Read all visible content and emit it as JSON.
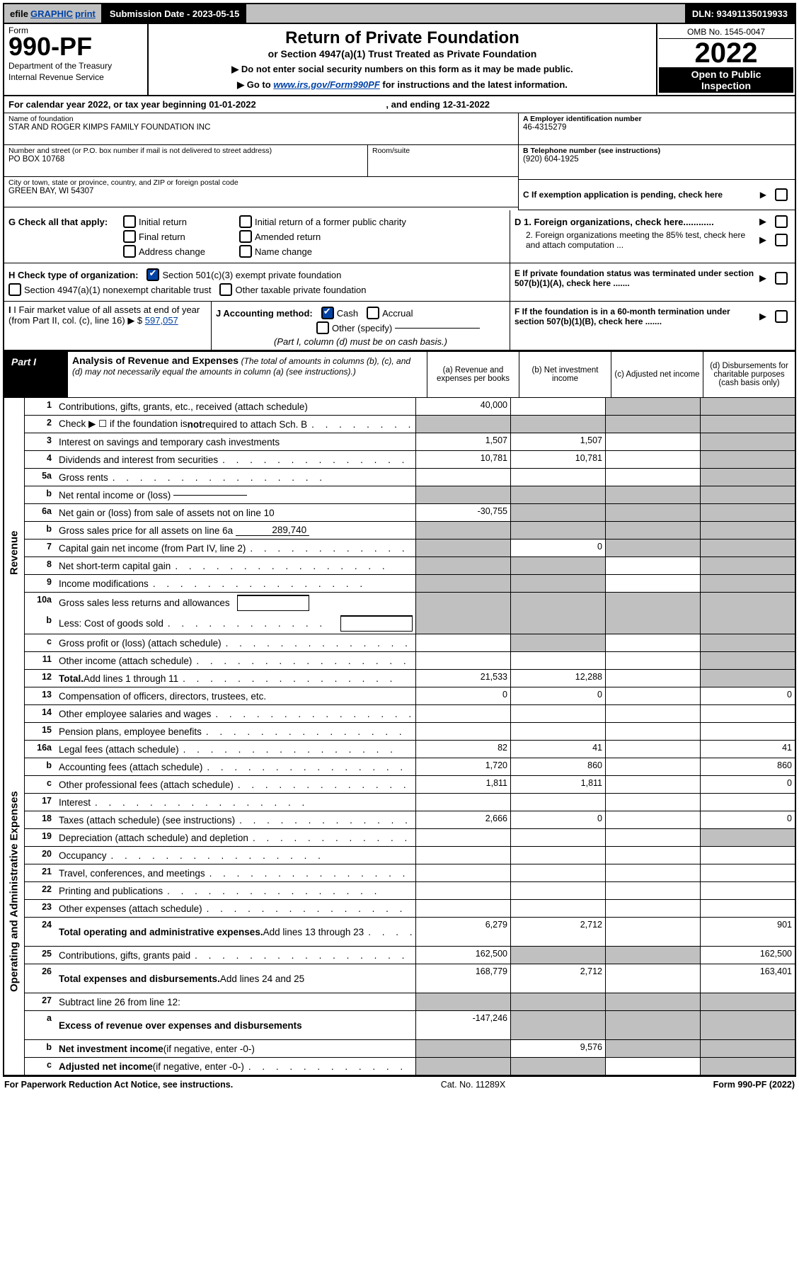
{
  "topbar": {
    "efile_prefix": "efile",
    "efile_graphic": "GRAPHIC",
    "efile_print": "print",
    "submission": "Submission Date - 2023-05-15",
    "dln": "DLN: 93491135019933"
  },
  "header": {
    "form_word": "Form",
    "form_num": "990-PF",
    "dept1": "Department of the Treasury",
    "dept2": "Internal Revenue Service",
    "title": "Return of Private Foundation",
    "sub1": "or Section 4947(a)(1) Trust Treated as Private Foundation",
    "sub2a": "▶ Do not enter social security numbers on this form as it may be made public.",
    "sub2b_pre": "▶ Go to ",
    "sub2b_link": "www.irs.gov/Form990PF",
    "sub2b_post": " for instructions and the latest information.",
    "omb": "OMB No. 1545-0047",
    "year": "2022",
    "open1": "Open to Public",
    "open2": "Inspection"
  },
  "cal": {
    "text_pre": "For calendar year 2022, or tax year beginning ",
    "begin": "01-01-2022",
    "text_mid": ", and ending ",
    "end": "12-31-2022"
  },
  "entity": {
    "name_lbl": "Name of foundation",
    "name": "STAR AND ROGER KIMPS FAMILY FOUNDATION INC",
    "addr_lbl": "Number and street (or P.O. box number if mail is not delivered to street address)",
    "addr": "PO BOX 10768",
    "room_lbl": "Room/suite",
    "room": "",
    "city_lbl": "City or town, state or province, country, and ZIP or foreign postal code",
    "city": "GREEN BAY, WI  54307",
    "ein_lbl": "A Employer identification number",
    "ein": "46-4315279",
    "tel_lbl": "B Telephone number (see instructions)",
    "tel": "(920) 604-1925",
    "c_lbl": "C If exemption application is pending, check here"
  },
  "checks": {
    "g_lbl": "G Check all that apply:",
    "g1": "Initial return",
    "g2": "Initial return of a former public charity",
    "g3": "Final return",
    "g4": "Amended return",
    "g5": "Address change",
    "g6": "Name change",
    "h_lbl": "H Check type of organization:",
    "h1": "Section 501(c)(3) exempt private foundation",
    "h2": "Section 4947(a)(1) nonexempt charitable trust",
    "h3": "Other taxable private foundation",
    "i_lbl": "I Fair market value of all assets at end of year (from Part II, col. (c), line 16) ▶ $",
    "i_val": "597,057",
    "j_lbl": "J Accounting method:",
    "j1": "Cash",
    "j2": "Accrual",
    "j3": "Other (specify)",
    "j_note": "(Part I, column (d) must be on cash basis.)",
    "d1": "D 1. Foreign organizations, check here............",
    "d2": "2. Foreign organizations meeting the 85% test, check here and attach computation ...",
    "e": "E  If private foundation status was terminated under section 507(b)(1)(A), check here .......",
    "f": "F  If the foundation is in a 60-month termination under section 507(b)(1)(B), check here .......",
    "arrow": "▶"
  },
  "part1": {
    "lbl": "Part I",
    "title": "Analysis of Revenue and Expenses",
    "note": " (The total of amounts in columns (b), (c), and (d) may not necessarily equal the amounts in column (a) (see instructions).)",
    "col_a": "(a) Revenue and expenses per books",
    "col_b": "(b) Net investment income",
    "col_c": "(c) Adjusted net income",
    "col_d": "(d) Disbursements for charitable purposes (cash basis only)"
  },
  "side": {
    "rev": "Revenue",
    "exp": "Operating and Administrative Expenses"
  },
  "rows": [
    {
      "n": "1",
      "d": "Contributions, gifts, grants, etc., received (attach schedule)",
      "a": "40,000",
      "b": "",
      "c": "g",
      "dcol": "g"
    },
    {
      "n": "2",
      "d": "Check ▶ ☐ if the foundation is <b>not</b> required to attach Sch. B",
      "dots": 1,
      "a": "g",
      "b": "g",
      "c": "g",
      "dcol": "g"
    },
    {
      "n": "3",
      "d": "Interest on savings and temporary cash investments",
      "a": "1,507",
      "b": "1,507",
      "c": "",
      "dcol": "g"
    },
    {
      "n": "4",
      "d": "Dividends and interest from securities",
      "dots": 1,
      "a": "10,781",
      "b": "10,781",
      "c": "",
      "dcol": "g"
    },
    {
      "n": "5a",
      "d": "Gross rents",
      "dots": 1,
      "a": "",
      "b": "",
      "c": "",
      "dcol": "g"
    },
    {
      "n": "b",
      "d": "Net rental income or (loss)",
      "inset_line": " ",
      "a": "g",
      "b": "g",
      "c": "g",
      "dcol": "g"
    },
    {
      "n": "6a",
      "d": "Net gain or (loss) from sale of assets not on line 10",
      "a": "-30,755",
      "b": "g",
      "c": "g",
      "dcol": "g"
    },
    {
      "n": "b",
      "d": "Gross sales price for all assets on line 6a",
      "inset_line": "289,740",
      "a": "g",
      "b": "g",
      "c": "g",
      "dcol": "g"
    },
    {
      "n": "7",
      "d": "Capital gain net income (from Part IV, line 2)",
      "dots": 1,
      "a": "g",
      "b": "0",
      "c": "g",
      "dcol": "g"
    },
    {
      "n": "8",
      "d": "Net short-term capital gain",
      "dots": 1,
      "a": "g",
      "b": "g",
      "c": "",
      "dcol": "g"
    },
    {
      "n": "9",
      "d": "Income modifications",
      "dots": 1,
      "a": "g",
      "b": "g",
      "c": "",
      "dcol": "g"
    },
    {
      "n": "10a",
      "d": "Gross sales less returns and allowances",
      "inset_box": 1,
      "a": "g",
      "b": "g",
      "c": "g",
      "dcol": "g",
      "nb": 1
    },
    {
      "n": "b",
      "d": "Less: Cost of goods sold",
      "dots": 1,
      "inset_box": 1,
      "a": "g",
      "b": "g",
      "c": "g",
      "dcol": "g"
    },
    {
      "n": "c",
      "d": "Gross profit or (loss) (attach schedule)",
      "dots": 1,
      "a": "",
      "b": "g",
      "c": "",
      "dcol": "g"
    },
    {
      "n": "11",
      "d": "Other income (attach schedule)",
      "dots": 1,
      "a": "",
      "b": "",
      "c": "",
      "dcol": "g"
    },
    {
      "n": "12",
      "d": "<b>Total.</b> Add lines 1 through 11",
      "dots": 1,
      "a": "21,533",
      "b": "12,288",
      "c": "",
      "dcol": "g"
    },
    {
      "n": "13",
      "d": "Compensation of officers, directors, trustees, etc.",
      "a": "0",
      "b": "0",
      "c": "",
      "dcol": "0"
    },
    {
      "n": "14",
      "d": "Other employee salaries and wages",
      "dots": 1,
      "a": "",
      "b": "",
      "c": "",
      "dcol": ""
    },
    {
      "n": "15",
      "d": "Pension plans, employee benefits",
      "dots": 1,
      "a": "",
      "b": "",
      "c": "",
      "dcol": ""
    },
    {
      "n": "16a",
      "d": "Legal fees (attach schedule)",
      "dots": 1,
      "a": "82",
      "b": "41",
      "c": "",
      "dcol": "41"
    },
    {
      "n": "b",
      "d": "Accounting fees (attach schedule)",
      "dots": 1,
      "a": "1,720",
      "b": "860",
      "c": "",
      "dcol": "860"
    },
    {
      "n": "c",
      "d": "Other professional fees (attach schedule)",
      "dots": 1,
      "a": "1,811",
      "b": "1,811",
      "c": "",
      "dcol": "0"
    },
    {
      "n": "17",
      "d": "Interest",
      "dots": 1,
      "a": "",
      "b": "",
      "c": "",
      "dcol": ""
    },
    {
      "n": "18",
      "d": "Taxes (attach schedule) (see instructions)",
      "dots": 1,
      "a": "2,666",
      "b": "0",
      "c": "",
      "dcol": "0"
    },
    {
      "n": "19",
      "d": "Depreciation (attach schedule) and depletion",
      "dots": 1,
      "a": "",
      "b": "",
      "c": "",
      "dcol": "g"
    },
    {
      "n": "20",
      "d": "Occupancy",
      "dots": 1,
      "a": "",
      "b": "",
      "c": "",
      "dcol": ""
    },
    {
      "n": "21",
      "d": "Travel, conferences, and meetings",
      "dots": 1,
      "a": "",
      "b": "",
      "c": "",
      "dcol": ""
    },
    {
      "n": "22",
      "d": "Printing and publications",
      "dots": 1,
      "a": "",
      "b": "",
      "c": "",
      "dcol": ""
    },
    {
      "n": "23",
      "d": "Other expenses (attach schedule)",
      "dots": 1,
      "a": "",
      "b": "",
      "c": "",
      "dcol": ""
    },
    {
      "n": "24",
      "d": "<b>Total operating and administrative expenses.</b> Add lines 13 through 23",
      "dots": 1,
      "a": "6,279",
      "b": "2,712",
      "c": "",
      "dcol": "901",
      "tall": 1
    },
    {
      "n": "25",
      "d": "Contributions, gifts, grants paid",
      "dots": 1,
      "a": "162,500",
      "b": "g",
      "c": "g",
      "dcol": "162,500"
    },
    {
      "n": "26",
      "d": "<b>Total expenses and disbursements.</b> Add lines 24 and 25",
      "a": "168,779",
      "b": "2,712",
      "c": "",
      "dcol": "163,401",
      "tall": 1
    },
    {
      "n": "27",
      "d": "Subtract line 26 from line 12:",
      "a": "g",
      "b": "g",
      "c": "g",
      "dcol": "g"
    },
    {
      "n": "a",
      "d": "<b>Excess of revenue over expenses and disbursements</b>",
      "a": "-147,246",
      "b": "g",
      "c": "g",
      "dcol": "g",
      "tall": 1
    },
    {
      "n": "b",
      "d": "<b>Net investment income</b> (if negative, enter -0-)",
      "a": "g",
      "b": "9,576",
      "c": "g",
      "dcol": "g"
    },
    {
      "n": "c",
      "d": "<b>Adjusted net income</b> (if negative, enter -0-)",
      "dots": 1,
      "a": "g",
      "b": "g",
      "c": "",
      "dcol": "g"
    }
  ],
  "footer": {
    "left": "For Paperwork Reduction Act Notice, see instructions.",
    "mid": "Cat. No. 11289X",
    "right": "Form 990-PF (2022)"
  }
}
